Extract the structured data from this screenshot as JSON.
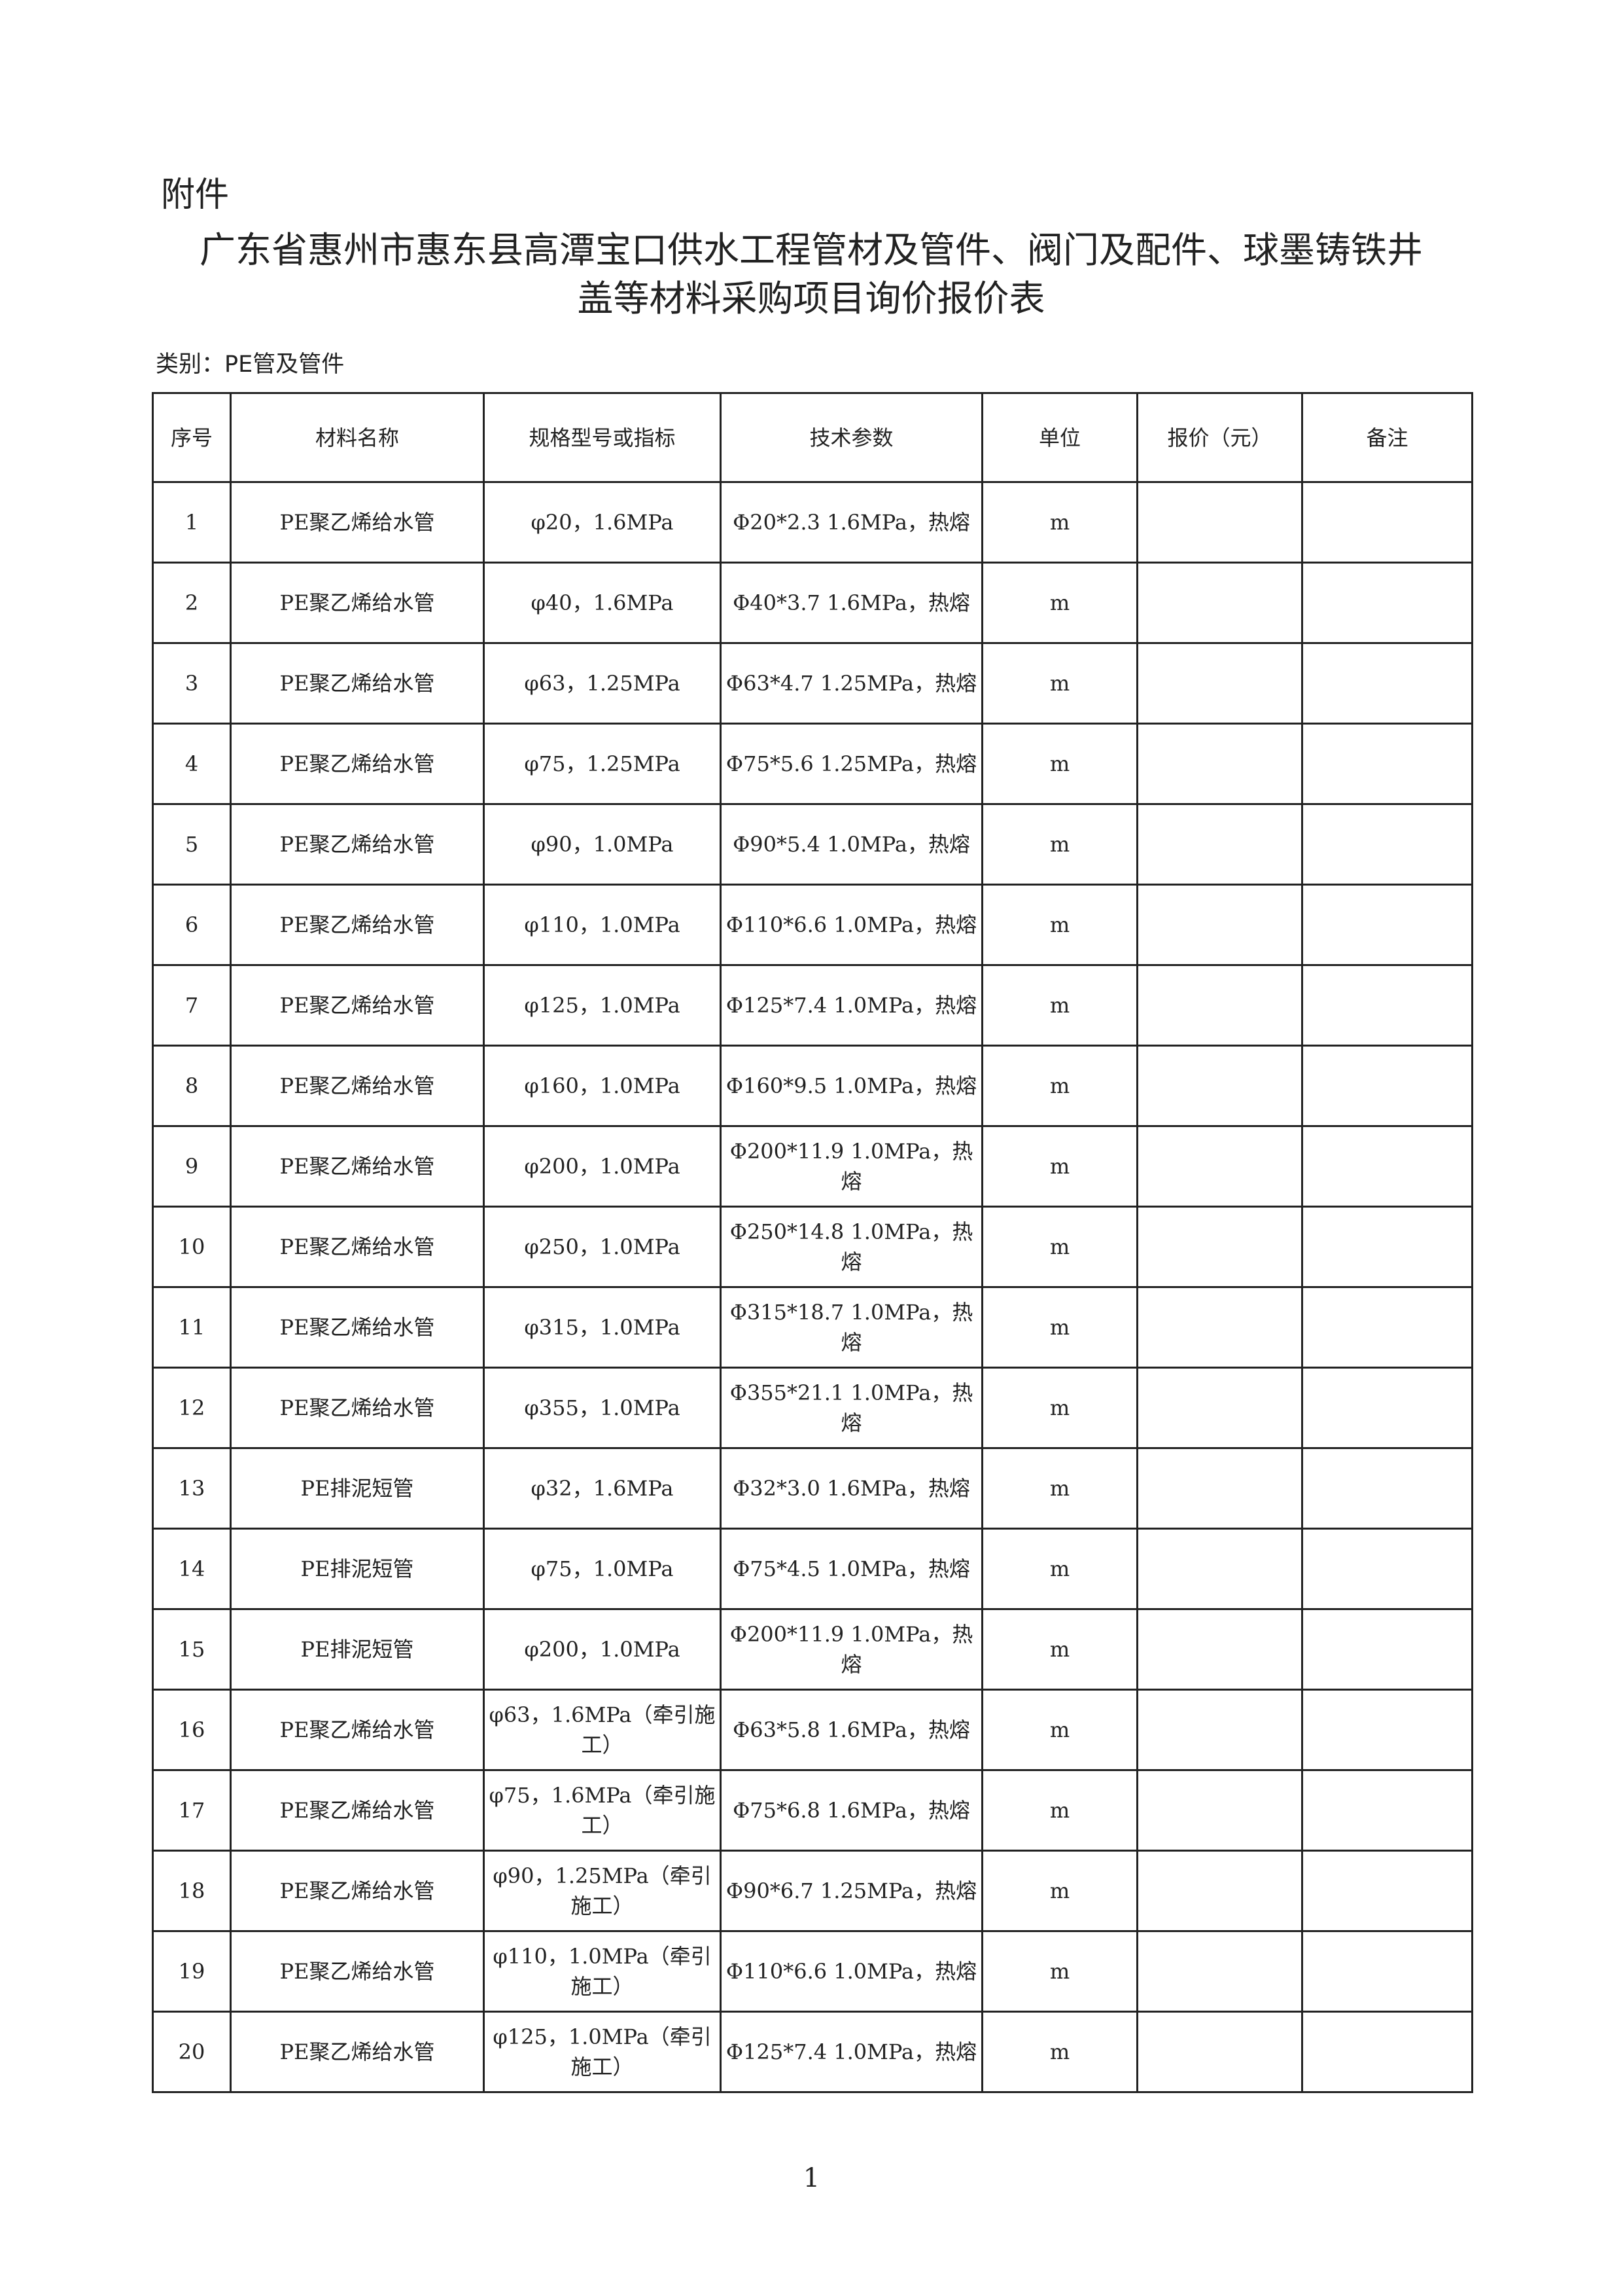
{
  "attachment_label": "附件",
  "title_line1": "广东省惠州市惠东县高潭宝口供水工程管材及管件、阀门及配件、球墨铸铁井",
  "title_line2": "盖等材料采购项目询价报价表",
  "category": "类别：PE管及管件",
  "table": {
    "headers": [
      "序号",
      "材料名称",
      "规格型号或指标",
      "技术参数",
      "单位",
      "报价（元）",
      "备注"
    ],
    "rows": [
      [
        "1",
        "PE聚乙烯给水管",
        "φ20，1.6MPa",
        "Φ20*2.3 1.6MPa，热熔",
        "m",
        "",
        ""
      ],
      [
        "2",
        "PE聚乙烯给水管",
        "φ40，1.6MPa",
        "Φ40*3.7 1.6MPa，热熔",
        "m",
        "",
        ""
      ],
      [
        "3",
        "PE聚乙烯给水管",
        "φ63，1.25MPa",
        "Φ63*4.7 1.25MPa，热熔",
        "m",
        "",
        ""
      ],
      [
        "4",
        "PE聚乙烯给水管",
        "φ75，1.25MPa",
        "Φ75*5.6 1.25MPa，热熔",
        "m",
        "",
        ""
      ],
      [
        "5",
        "PE聚乙烯给水管",
        "φ90，1.0MPa",
        "Φ90*5.4 1.0MPa，热熔",
        "m",
        "",
        ""
      ],
      [
        "6",
        "PE聚乙烯给水管",
        "φ110，1.0MPa",
        "Φ110*6.6 1.0MPa，热熔",
        "m",
        "",
        ""
      ],
      [
        "7",
        "PE聚乙烯给水管",
        "φ125，1.0MPa",
        "Φ125*7.4 1.0MPa，热熔",
        "m",
        "",
        ""
      ],
      [
        "8",
        "PE聚乙烯给水管",
        "φ160，1.0MPa",
        "Φ160*9.5 1.0MPa，热熔",
        "m",
        "",
        ""
      ],
      [
        "9",
        "PE聚乙烯给水管",
        "φ200，1.0MPa",
        "Φ200*11.9 1.0MPa，热熔",
        "m",
        "",
        ""
      ],
      [
        "10",
        "PE聚乙烯给水管",
        "φ250，1.0MPa",
        "Φ250*14.8 1.0MPa，热熔",
        "m",
        "",
        ""
      ],
      [
        "11",
        "PE聚乙烯给水管",
        "φ315，1.0MPa",
        "Φ315*18.7 1.0MPa，热熔",
        "m",
        "",
        ""
      ],
      [
        "12",
        "PE聚乙烯给水管",
        "φ355，1.0MPa",
        "Φ355*21.1 1.0MPa，热熔",
        "m",
        "",
        ""
      ],
      [
        "13",
        "PE排泥短管",
        "φ32，1.6MPa",
        "Φ32*3.0 1.6MPa，热熔",
        "m",
        "",
        ""
      ],
      [
        "14",
        "PE排泥短管",
        "φ75，1.0MPa",
        "Φ75*4.5 1.0MPa，热熔",
        "m",
        "",
        ""
      ],
      [
        "15",
        "PE排泥短管",
        "φ200，1.0MPa",
        "Φ200*11.9 1.0MPa，热熔",
        "m",
        "",
        ""
      ],
      [
        "16",
        "PE聚乙烯给水管",
        "φ63，1.6MPa（牵引施工）",
        "Φ63*5.8 1.6MPa，热熔",
        "m",
        "",
        ""
      ],
      [
        "17",
        "PE聚乙烯给水管",
        "φ75，1.6MPa（牵引施工）",
        "Φ75*6.8 1.6MPa，热熔",
        "m",
        "",
        ""
      ],
      [
        "18",
        "PE聚乙烯给水管",
        "φ90，1.25MPa（牵引施工）",
        "Φ90*6.7 1.25MPa，热熔",
        "m",
        "",
        ""
      ],
      [
        "19",
        "PE聚乙烯给水管",
        "φ110，1.0MPa（牵引施工）",
        "Φ110*6.6 1.0MPa，热熔",
        "m",
        "",
        ""
      ],
      [
        "20",
        "PE聚乙烯给水管",
        "φ125，1.0MPa（牵引施工）",
        "Φ125*7.4 1.0MPa，热熔",
        "m",
        "",
        ""
      ]
    ]
  },
  "page_number": "1"
}
